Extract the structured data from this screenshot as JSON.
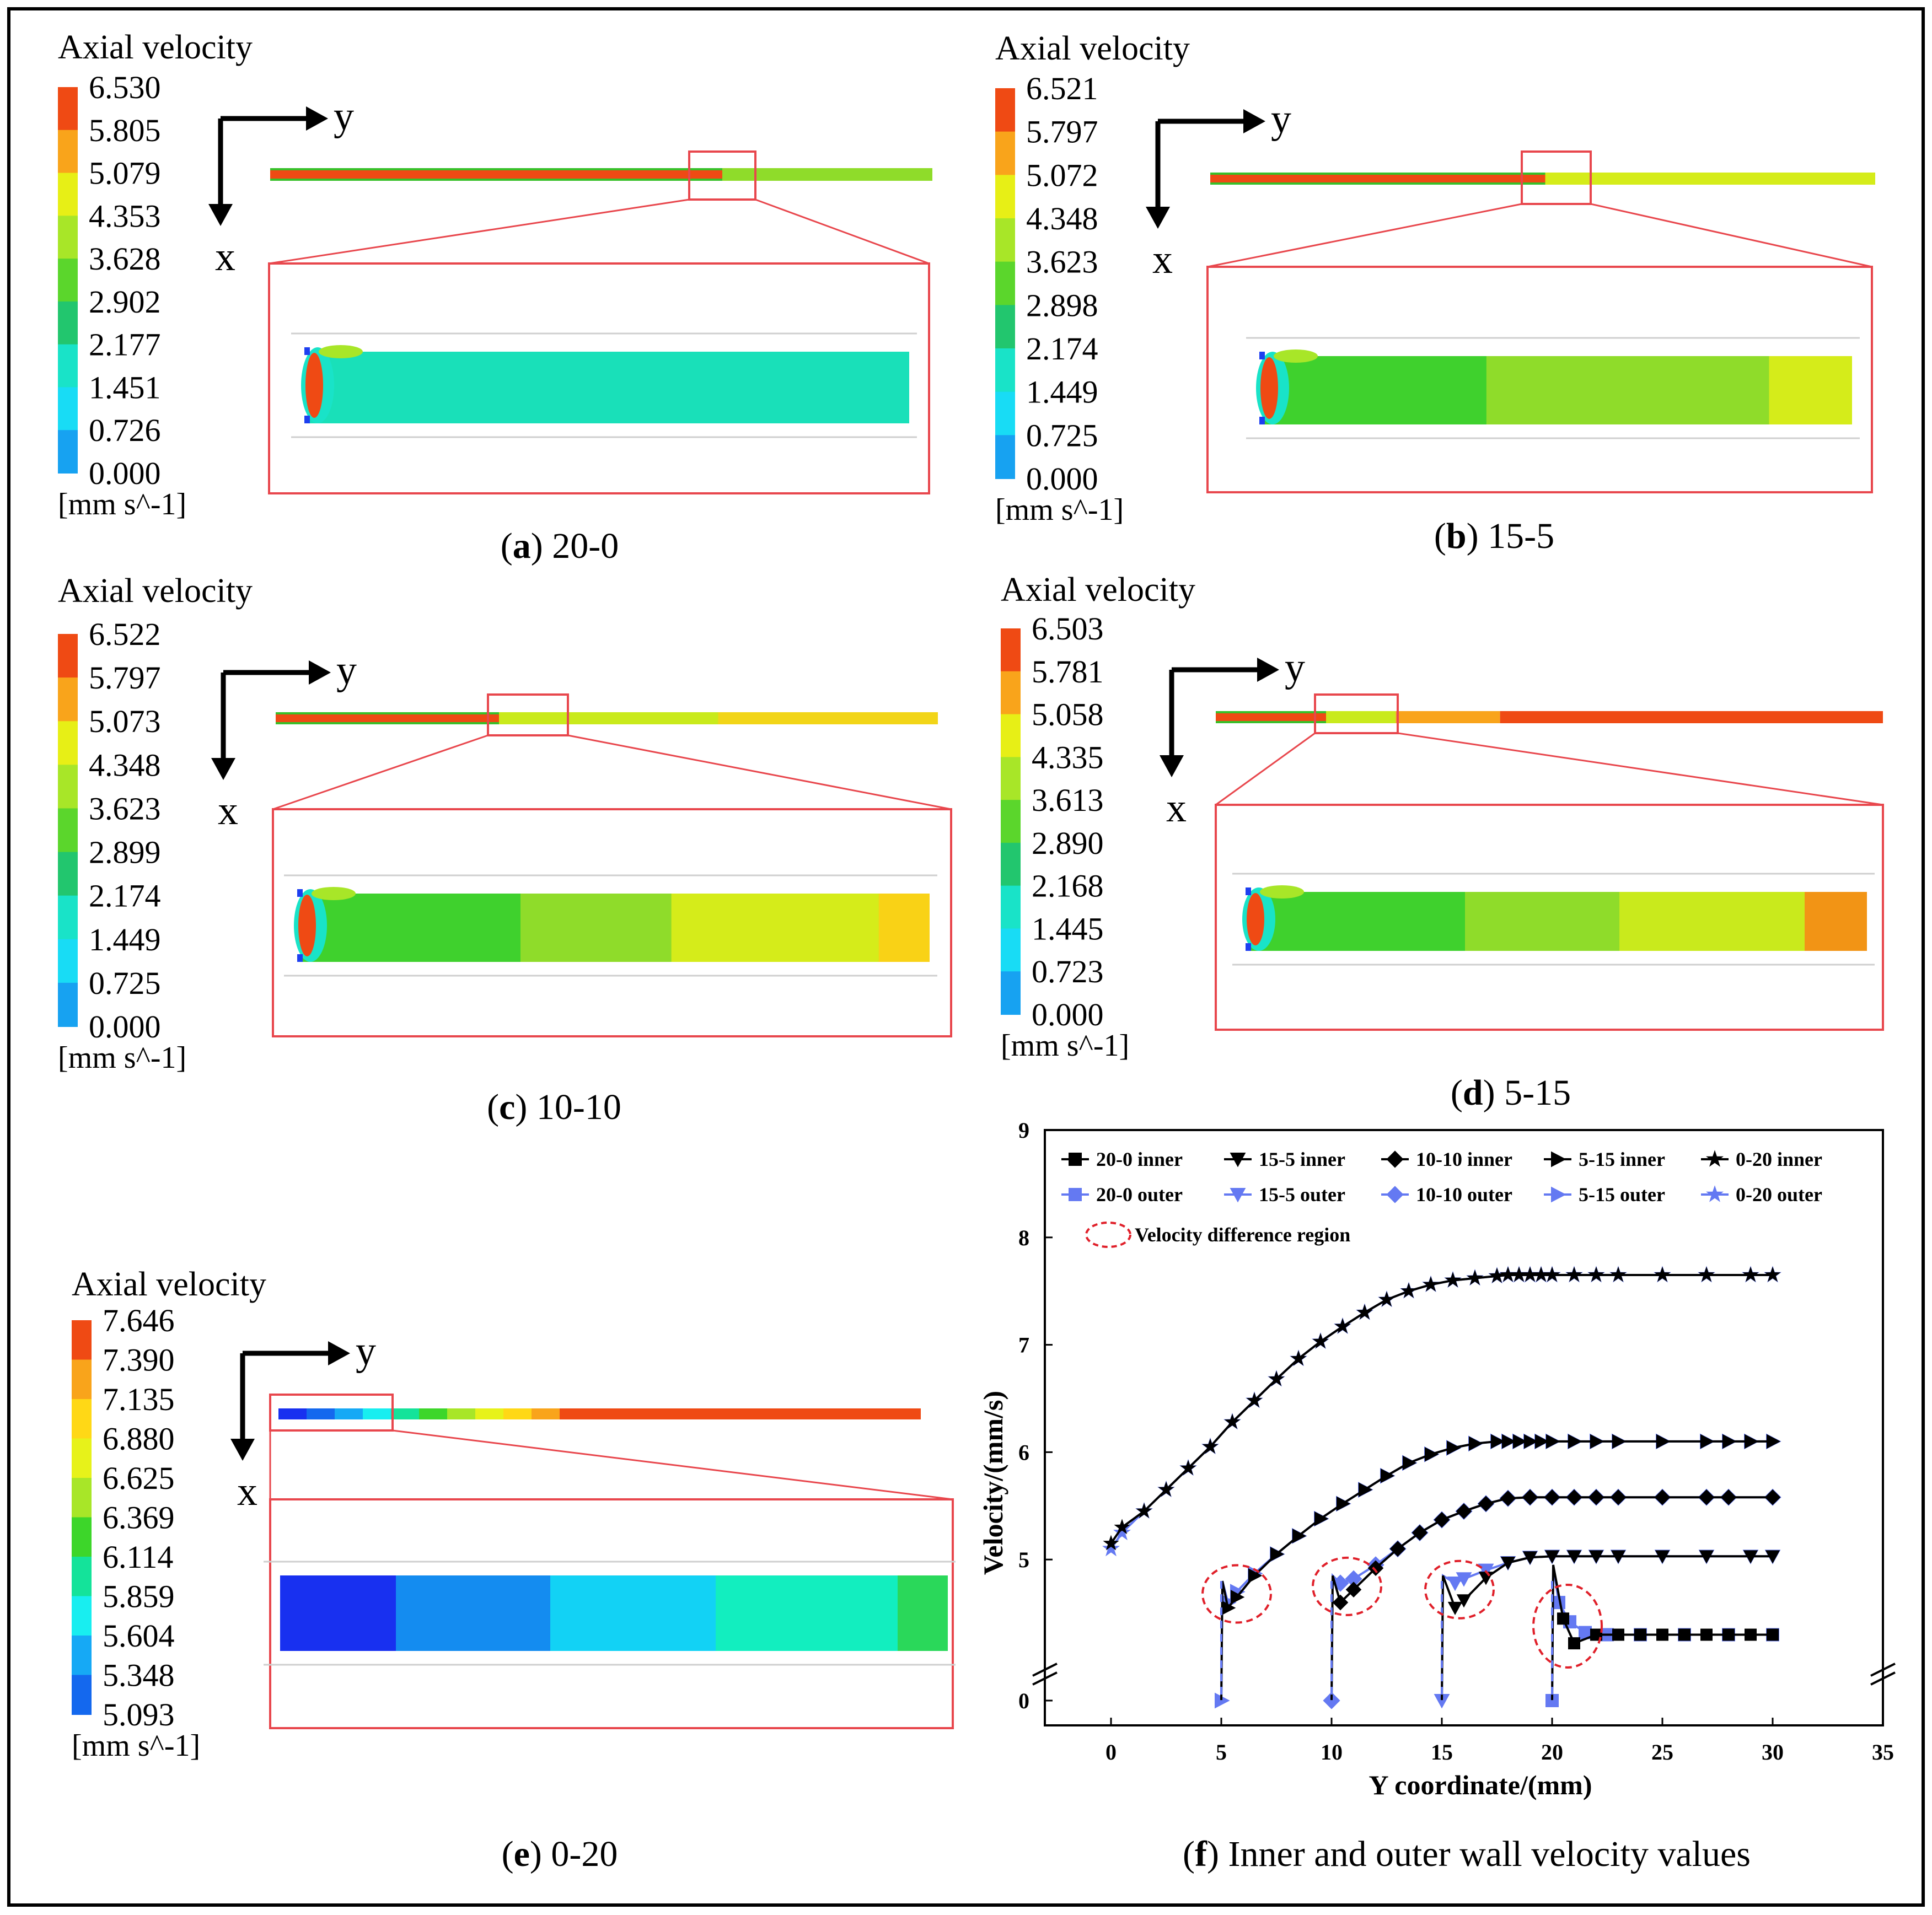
{
  "panels": [
    {
      "id": "a",
      "caption_letter": "a",
      "caption_text": "20-0",
      "legend_title": "Axial velocity",
      "legend_values": [
        "6.530",
        "5.805",
        "5.079",
        "4.353",
        "3.628",
        "2.902",
        "2.177",
        "1.451",
        "0.726",
        "0.000"
      ],
      "legend_unit": "[mm s^-1]",
      "axis_y": "y",
      "axis_x": "x"
    },
    {
      "id": "b",
      "caption_letter": "b",
      "caption_text": "15-5",
      "legend_title": "Axial velocity",
      "legend_values": [
        "6.521",
        "5.797",
        "5.072",
        "4.348",
        "3.623",
        "2.898",
        "2.174",
        "1.449",
        "0.725",
        "0.000"
      ],
      "legend_unit": "[mm s^-1]",
      "axis_y": "y",
      "axis_x": "x"
    },
    {
      "id": "c",
      "caption_letter": "c",
      "caption_text": "10-10",
      "legend_title": "Axial velocity",
      "legend_values": [
        "6.522",
        "5.797",
        "5.073",
        "4.348",
        "3.623",
        "2.899",
        "2.174",
        "1.449",
        "0.725",
        "0.000"
      ],
      "legend_unit": "[mm s^-1]",
      "axis_y": "y",
      "axis_x": "x"
    },
    {
      "id": "d",
      "caption_letter": "d",
      "caption_text": "5-15",
      "legend_title": "Axial velocity",
      "legend_values": [
        "6.503",
        "5.781",
        "5.058",
        "4.335",
        "3.613",
        "2.890",
        "2.168",
        "1.445",
        "0.723",
        "0.000"
      ],
      "legend_unit": "[mm s^-1]",
      "axis_y": "y",
      "axis_x": "x"
    },
    {
      "id": "e",
      "caption_letter": "e",
      "caption_text": "0-20",
      "legend_title": "Axial velocity",
      "legend_values": [
        "7.646",
        "7.390",
        "7.135",
        "6.880",
        "6.625",
        "6.369",
        "6.114",
        "5.859",
        "5.604",
        "5.348",
        "5.093"
      ],
      "legend_unit": "[mm s^-1]",
      "axis_y": "y",
      "axis_x": "x"
    }
  ],
  "colors": {
    "legend10": [
      "#ef4a14",
      "#f9a41b",
      "#e7ef16",
      "#a8e628",
      "#5bd62c",
      "#22c66e",
      "#19e3c8",
      "#18dcf5",
      "#17a2f1",
      "#1d3ff0"
    ],
    "legend11": [
      "#ef4a14",
      "#f9a41b",
      "#ffd816",
      "#e7f21a",
      "#a8e628",
      "#3dd62a",
      "#14e39a",
      "#18eef0",
      "#16a9f5",
      "#1468ee",
      "#1830f0"
    ],
    "pipe_high": "#ef4a14",
    "box_red": "#e8474d",
    "inner_black": "#000000",
    "outer_blue": "#6479f2",
    "circle_red": "#e0202a"
  },
  "chart_data": {
    "type": "line",
    "panel": "f",
    "caption_letter": "f",
    "caption_text": "Inner and outer wall velocity values",
    "xlabel": "Y coordinate/(mm)",
    "ylabel": "Velocity/(mm/s)",
    "xlim": [
      -3,
      35
    ],
    "xticks": [
      0,
      5,
      10,
      15,
      20,
      25,
      30,
      35
    ],
    "yticks": [
      0,
      5,
      6,
      7,
      8,
      9
    ],
    "y_axis_break": "between 0 and 4.2",
    "legend": [
      {
        "label": "20-0 inner",
        "marker": "square",
        "color": "#000000"
      },
      {
        "label": "15-5 inner",
        "marker": "triangle-down",
        "color": "#000000"
      },
      {
        "label": "10-10 inner",
        "marker": "diamond",
        "color": "#000000"
      },
      {
        "label": "5-15 inner",
        "marker": "triangle-right",
        "color": "#000000"
      },
      {
        "label": "0-20 inner",
        "marker": "star",
        "color": "#000000"
      },
      {
        "label": "20-0 outer",
        "marker": "square",
        "color": "#6479f2"
      },
      {
        "label": "15-5 outer",
        "marker": "triangle-down",
        "color": "#6479f2"
      },
      {
        "label": "10-10 outer",
        "marker": "diamond",
        "color": "#6479f2"
      },
      {
        "label": "5-15 outer",
        "marker": "triangle-right",
        "color": "#6479f2"
      },
      {
        "label": "0-20 outer",
        "marker": "star",
        "color": "#6479f2"
      },
      {
        "label": "Velocity difference region",
        "marker": "dashed-circle",
        "color": "#e0202a"
      }
    ],
    "series": [
      {
        "name": "0-20",
        "marker": "star",
        "inner": [
          [
            0,
            5.15
          ],
          [
            0.5,
            5.3
          ],
          [
            1.5,
            5.45
          ],
          [
            2.5,
            5.65
          ],
          [
            3.5,
            5.85
          ],
          [
            4.5,
            6.05
          ],
          [
            5.5,
            6.28
          ],
          [
            6.5,
            6.48
          ],
          [
            7.5,
            6.68
          ],
          [
            8.5,
            6.87
          ],
          [
            9.5,
            7.03
          ],
          [
            10.5,
            7.17
          ],
          [
            11.5,
            7.3
          ],
          [
            12.5,
            7.42
          ],
          [
            13.5,
            7.5
          ],
          [
            14.5,
            7.56
          ],
          [
            15.5,
            7.6
          ],
          [
            16.5,
            7.62
          ],
          [
            17.5,
            7.64
          ],
          [
            18,
            7.65
          ],
          [
            18.5,
            7.65
          ],
          [
            19,
            7.65
          ],
          [
            19.5,
            7.65
          ],
          [
            20,
            7.65
          ],
          [
            21,
            7.65
          ],
          [
            22,
            7.65
          ],
          [
            23,
            7.65
          ],
          [
            25,
            7.65
          ],
          [
            27,
            7.65
          ],
          [
            29,
            7.65
          ],
          [
            30,
            7.65
          ]
        ],
        "outer": [
          [
            0,
            5.1
          ],
          [
            0.5,
            5.25
          ],
          [
            1.5,
            5.45
          ],
          [
            2.5,
            5.65
          ],
          [
            3.5,
            5.85
          ],
          [
            4.5,
            6.05
          ],
          [
            5.5,
            6.28
          ],
          [
            6.5,
            6.48
          ],
          [
            7.5,
            6.68
          ],
          [
            8.5,
            6.87
          ],
          [
            9.5,
            7.03
          ],
          [
            10.5,
            7.17
          ],
          [
            11.5,
            7.3
          ],
          [
            12.5,
            7.42
          ],
          [
            13.5,
            7.5
          ],
          [
            14.5,
            7.56
          ],
          [
            15.5,
            7.6
          ],
          [
            16.5,
            7.62
          ],
          [
            17.5,
            7.64
          ],
          [
            18,
            7.65
          ],
          [
            18.5,
            7.65
          ],
          [
            19,
            7.65
          ],
          [
            19.5,
            7.65
          ],
          [
            20,
            7.65
          ],
          [
            21,
            7.65
          ],
          [
            22,
            7.65
          ],
          [
            23,
            7.65
          ],
          [
            25,
            7.65
          ],
          [
            27,
            7.65
          ],
          [
            29,
            7.65
          ],
          [
            30,
            7.65
          ]
        ]
      },
      {
        "name": "5-15",
        "marker": "triangle-right",
        "inner": [
          [
            5,
            0
          ],
          [
            5.05,
            4.8
          ],
          [
            5.3,
            4.55
          ],
          [
            5.7,
            4.65
          ],
          [
            6.5,
            4.85
          ],
          [
            7.5,
            5.05
          ],
          [
            8.5,
            5.22
          ],
          [
            9.5,
            5.38
          ],
          [
            10.5,
            5.52
          ],
          [
            11.5,
            5.65
          ],
          [
            12.5,
            5.78
          ],
          [
            13.5,
            5.9
          ],
          [
            14.5,
            5.98
          ],
          [
            15.5,
            6.04
          ],
          [
            16.5,
            6.08
          ],
          [
            17.5,
            6.1
          ],
          [
            18,
            6.1
          ],
          [
            18.5,
            6.1
          ],
          [
            19,
            6.1
          ],
          [
            19.5,
            6.1
          ],
          [
            20,
            6.1
          ],
          [
            21,
            6.1
          ],
          [
            22,
            6.1
          ],
          [
            23,
            6.1
          ],
          [
            25,
            6.1
          ],
          [
            27,
            6.1
          ],
          [
            28,
            6.1
          ],
          [
            29,
            6.1
          ],
          [
            30,
            6.1
          ]
        ],
        "outer": [
          [
            5,
            0
          ],
          [
            5.05,
            4.8
          ],
          [
            5.3,
            4.6
          ],
          [
            5.7,
            4.7
          ],
          [
            6.5,
            4.87
          ],
          [
            7.5,
            5.05
          ],
          [
            8.5,
            5.22
          ],
          [
            9.5,
            5.38
          ],
          [
            10.5,
            5.52
          ],
          [
            11.5,
            5.65
          ],
          [
            12.5,
            5.78
          ],
          [
            13.5,
            5.9
          ],
          [
            14.5,
            5.98
          ],
          [
            15.5,
            6.04
          ],
          [
            16.5,
            6.08
          ],
          [
            17.5,
            6.1
          ],
          [
            18,
            6.1
          ],
          [
            18.5,
            6.1
          ],
          [
            19,
            6.1
          ],
          [
            19.5,
            6.1
          ],
          [
            20,
            6.1
          ],
          [
            21,
            6.1
          ],
          [
            22,
            6.1
          ],
          [
            23,
            6.1
          ],
          [
            25,
            6.1
          ],
          [
            27,
            6.1
          ],
          [
            28,
            6.1
          ],
          [
            29,
            6.1
          ],
          [
            30,
            6.1
          ]
        ]
      },
      {
        "name": "10-10",
        "marker": "diamond",
        "inner": [
          [
            10,
            0
          ],
          [
            10.05,
            4.85
          ],
          [
            10.4,
            4.6
          ],
          [
            11,
            4.72
          ],
          [
            12,
            4.92
          ],
          [
            13,
            5.1
          ],
          [
            14,
            5.25
          ],
          [
            15,
            5.37
          ],
          [
            16,
            5.45
          ],
          [
            17,
            5.52
          ],
          [
            18,
            5.57
          ],
          [
            19,
            5.58
          ],
          [
            20,
            5.58
          ],
          [
            21,
            5.58
          ],
          [
            22,
            5.58
          ],
          [
            23,
            5.58
          ],
          [
            25,
            5.58
          ],
          [
            27,
            5.58
          ],
          [
            28,
            5.58
          ],
          [
            30,
            5.58
          ]
        ],
        "outer": [
          [
            10,
            0
          ],
          [
            10.05,
            4.85
          ],
          [
            10.4,
            4.78
          ],
          [
            11,
            4.82
          ],
          [
            12,
            4.95
          ],
          [
            13,
            5.1
          ],
          [
            14,
            5.25
          ],
          [
            15,
            5.37
          ],
          [
            16,
            5.45
          ],
          [
            17,
            5.52
          ],
          [
            18,
            5.57
          ],
          [
            19,
            5.58
          ],
          [
            20,
            5.58
          ],
          [
            21,
            5.58
          ],
          [
            22,
            5.58
          ],
          [
            23,
            5.58
          ],
          [
            25,
            5.58
          ],
          [
            27,
            5.58
          ],
          [
            28,
            5.58
          ],
          [
            30,
            5.58
          ]
        ]
      },
      {
        "name": "15-5",
        "marker": "triangle-down",
        "inner": [
          [
            15,
            0
          ],
          [
            15.05,
            4.85
          ],
          [
            15.6,
            4.55
          ],
          [
            16,
            4.62
          ],
          [
            17,
            4.83
          ],
          [
            18,
            4.97
          ],
          [
            19,
            5.02
          ],
          [
            20,
            5.03
          ],
          [
            21,
            5.03
          ],
          [
            22,
            5.03
          ],
          [
            23,
            5.03
          ],
          [
            25,
            5.03
          ],
          [
            27,
            5.03
          ],
          [
            29,
            5.03
          ],
          [
            30,
            5.03
          ]
        ],
        "outer": [
          [
            15,
            0
          ],
          [
            15.05,
            4.85
          ],
          [
            15.6,
            4.78
          ],
          [
            16,
            4.82
          ],
          [
            17,
            4.9
          ],
          [
            18,
            4.97
          ],
          [
            19,
            5.02
          ],
          [
            20,
            5.03
          ],
          [
            21,
            5.03
          ],
          [
            22,
            5.03
          ],
          [
            23,
            5.03
          ],
          [
            25,
            5.03
          ],
          [
            27,
            5.03
          ],
          [
            29,
            5.03
          ],
          [
            30,
            5.03
          ]
        ]
      },
      {
        "name": "20-0",
        "marker": "square",
        "inner": [
          [
            20,
            0
          ],
          [
            20.05,
            4.95
          ],
          [
            20.5,
            4.45
          ],
          [
            21,
            4.22
          ],
          [
            22,
            4.3
          ],
          [
            23,
            4.3
          ],
          [
            24,
            4.3
          ],
          [
            25,
            4.3
          ],
          [
            26,
            4.3
          ],
          [
            27,
            4.3
          ],
          [
            28,
            4.3
          ],
          [
            29,
            4.3
          ],
          [
            30,
            4.3
          ]
        ],
        "outer": [
          [
            20,
            0
          ],
          [
            20.05,
            4.95
          ],
          [
            20.3,
            4.6
          ],
          [
            20.8,
            4.42
          ],
          [
            21.5,
            4.32
          ],
          [
            22.5,
            4.3
          ],
          [
            24,
            4.3
          ],
          [
            26,
            4.3
          ],
          [
            28,
            4.3
          ],
          [
            30,
            4.3
          ]
        ]
      }
    ],
    "difference_regions": [
      [
        5.7,
        4.68
      ],
      [
        10.7,
        4.75
      ],
      [
        15.8,
        4.72
      ],
      [
        20.7,
        4.38
      ]
    ]
  }
}
